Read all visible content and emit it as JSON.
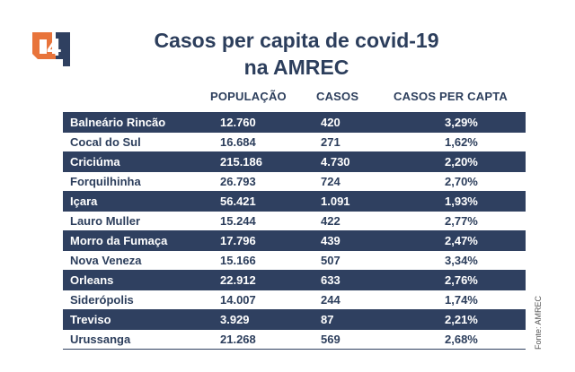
{
  "title_line1": "Casos per capita de covid-19",
  "title_line2": "na AMREC",
  "logo_text": "4",
  "source": "Fonte: AMREC",
  "colors": {
    "dark_row": "#2f4060",
    "title": "#2c3e5c",
    "logo_orange": "#e8743b"
  },
  "chart_data": {
    "type": "table",
    "columns": [
      "",
      "POPULAÇÃO",
      "CASOS",
      "CASOS PER CAPTA"
    ],
    "rows": [
      [
        "Balneário Rincão",
        "12.760",
        "420",
        "3,29%"
      ],
      [
        "Cocal do Sul",
        "16.684",
        "271",
        "1,62%"
      ],
      [
        "Criciúma",
        "215.186",
        "4.730",
        "2,20%"
      ],
      [
        "Forquilhinha",
        "26.793",
        "724",
        "2,70%"
      ],
      [
        "Içara",
        "56.421",
        "1.091",
        "1,93%"
      ],
      [
        "Lauro Muller",
        "15.244",
        "422",
        "2,77%"
      ],
      [
        "Morro da Fumaça",
        "17.796",
        "439",
        "2,47%"
      ],
      [
        "Nova Veneza",
        "15.166",
        "507",
        "3,34%"
      ],
      [
        "Orleans",
        "22.912",
        "633",
        "2,76%"
      ],
      [
        "Siderópolis",
        "14.007",
        "244",
        "1,74%"
      ],
      [
        "Treviso",
        "3.929",
        "87",
        "2,21%"
      ],
      [
        "Urussanga",
        "21.268",
        "569",
        "2,68%"
      ]
    ]
  }
}
